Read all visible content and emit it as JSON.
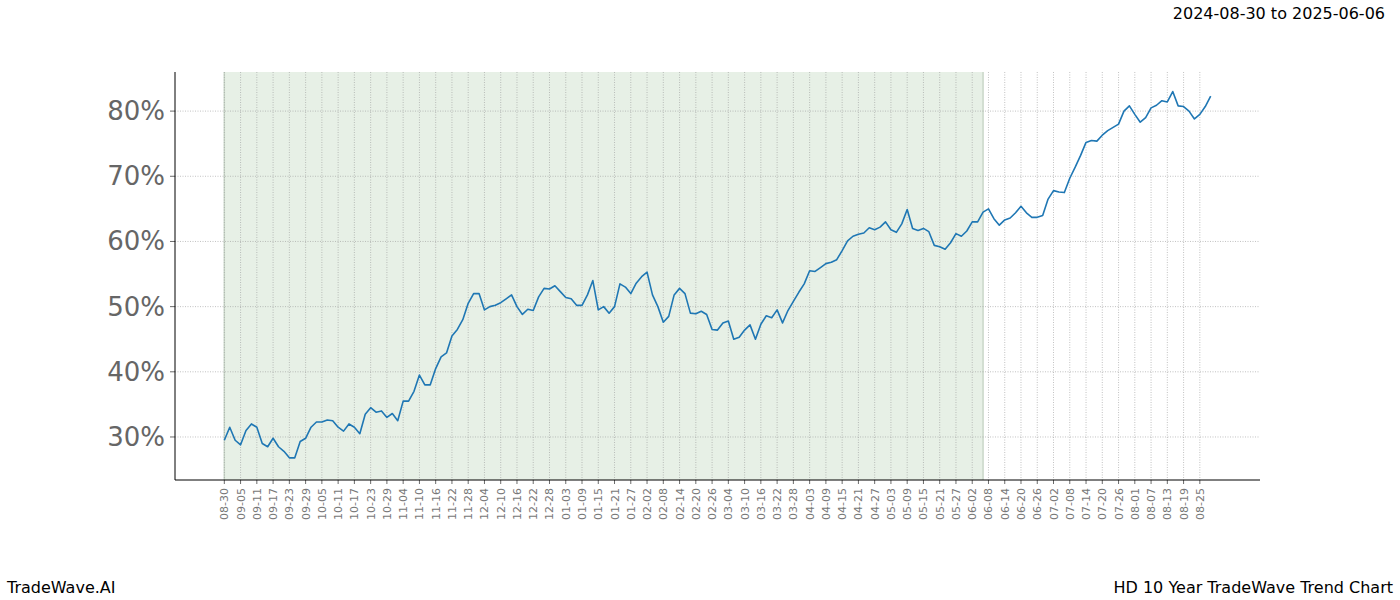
{
  "chart_data": {
    "type": "line",
    "title": "HD 10 Year TradeWave Trend Chart",
    "subtitle": "2024-08-30 to 2025-06-06",
    "annotations": [
      "TradeWave.AI"
    ],
    "color": "#1f77b4",
    "grid": true,
    "ylim": [
      23.4,
      86
    ],
    "yticks": [
      {
        "value": 30,
        "label": "30%"
      },
      {
        "value": 40,
        "label": "40%"
      },
      {
        "value": 50,
        "label": "50%"
      },
      {
        "value": 60,
        "label": "60%"
      },
      {
        "value": 70,
        "label": "70%"
      },
      {
        "value": 80,
        "label": "80%"
      }
    ],
    "shaded_range": [
      0,
      140
    ],
    "categories": [
      "08-30",
      null,
      null,
      "09-05",
      null,
      null,
      "09-11",
      null,
      null,
      "09-17",
      null,
      null,
      "09-23",
      null,
      null,
      "09-29",
      null,
      null,
      "10-05",
      null,
      null,
      "10-11",
      null,
      null,
      "10-17",
      null,
      null,
      "10-23",
      null,
      null,
      "10-29",
      null,
      null,
      "11-04",
      null,
      null,
      "11-10",
      null,
      null,
      "11-16",
      null,
      null,
      "11-22",
      null,
      null,
      "11-28",
      null,
      null,
      "12-04",
      null,
      null,
      "12-10",
      null,
      null,
      "12-16",
      null,
      null,
      "12-22",
      null,
      null,
      "12-28",
      null,
      null,
      "01-03",
      null,
      null,
      "01-09",
      null,
      null,
      "01-15",
      null,
      null,
      "01-21",
      null,
      null,
      "01-27",
      null,
      null,
      "02-02",
      null,
      null,
      "02-08",
      null,
      null,
      "02-14",
      null,
      null,
      "02-20",
      null,
      null,
      "02-26",
      null,
      null,
      "03-04",
      null,
      null,
      "03-10",
      null,
      null,
      "03-16",
      null,
      null,
      "03-22",
      null,
      null,
      "03-28",
      null,
      null,
      "04-03",
      null,
      null,
      "04-09",
      null,
      null,
      "04-15",
      null,
      null,
      "04-21",
      null,
      null,
      "04-27",
      null,
      null,
      "05-03",
      null,
      null,
      "05-09",
      null,
      null,
      "05-15",
      null,
      null,
      "05-21",
      null,
      null,
      "05-27",
      null,
      null,
      "06-02",
      null,
      null,
      "06-08",
      null,
      null,
      "06-14",
      null,
      null,
      "06-20",
      null,
      null,
      "06-26",
      null,
      null,
      "07-02",
      null,
      null,
      "07-08",
      null,
      null,
      "07-14",
      null,
      null,
      "07-20",
      null,
      null,
      "07-26",
      null,
      null,
      "08-01",
      null,
      null,
      "08-07",
      null,
      null,
      "08-13",
      null,
      null,
      "08-19",
      null,
      null,
      "08-25",
      null,
      null
    ],
    "values": [
      29.5,
      31.5,
      29.5,
      28.8,
      31,
      32,
      31.5,
      29,
      28.5,
      29.8,
      28.5,
      27.8,
      26.8,
      26.8,
      29.3,
      29.8,
      31.5,
      32.3,
      32.3,
      32.6,
      32.5,
      31.5,
      30.9,
      32,
      31.5,
      30.5,
      33.5,
      34.5,
      33.8,
      34,
      33,
      33.6,
      32.5,
      35.5,
      35.5,
      37,
      39.5,
      38,
      38,
      40.5,
      42.3,
      42.9,
      45.5,
      46.5,
      48,
      50.5,
      52,
      52,
      49.5,
      50,
      50.2,
      50.6,
      51.2,
      51.8,
      50,
      48.8,
      49.6,
      49.4,
      51.5,
      52.8,
      52.7,
      53.2,
      52.3,
      51.4,
      51.2,
      50.2,
      50.2,
      51.8,
      54,
      49.5,
      50,
      49,
      50,
      53.5,
      53,
      52,
      53.6,
      54.6,
      55.3,
      51.8,
      50,
      47.6,
      48.5,
      51.8,
      52.8,
      52,
      49,
      48.9,
      49.3,
      48.8,
      46.5,
      46.4,
      47.5,
      47.8,
      45,
      45.3,
      46.4,
      47.2,
      45,
      47.3,
      48.6,
      48.3,
      49.5,
      47.5,
      49.4,
      50.8,
      52.2,
      53.5,
      55.5,
      55.4,
      56,
      56.6,
      56.8,
      57.2,
      58.6,
      60.1,
      60.8,
      61.1,
      61.3,
      62.1,
      61.8,
      62.2,
      63,
      61.8,
      61.4,
      62.7,
      64.9,
      62,
      61.7,
      62,
      61.5,
      59.4,
      59.2,
      58.8,
      59.8,
      61.2,
      60.8,
      61.6,
      63,
      63,
      64.5,
      65,
      63.5,
      62.5,
      63.3,
      63.6,
      64.4,
      65.4,
      64.4,
      63.7,
      63.7,
      64,
      66.5,
      67.8,
      67.6,
      67.5,
      69.7,
      71.4,
      73.2,
      75.2,
      75.5,
      75.4,
      76.3,
      77,
      77.5,
      78,
      80,
      80.8,
      79.5,
      78.3,
      79,
      80.5,
      80.9,
      81.6,
      81.4,
      83,
      80.8,
      80.7,
      80,
      78.8,
      79.5,
      80.7,
      82.3
    ]
  }
}
